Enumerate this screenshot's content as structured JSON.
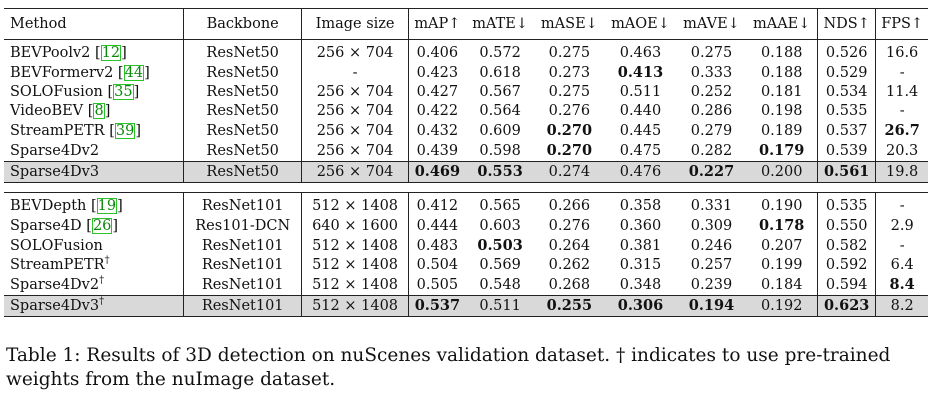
{
  "table": {
    "headers": [
      "Method",
      "Backbone",
      "Image size",
      "mAP↑",
      "mATE↓",
      "mASE↓",
      "mAOE↓",
      "mAVE↓",
      "mAAE↓",
      "NDS↑",
      "FPS↑"
    ],
    "groups": [
      {
        "rows": [
          {
            "method": "BEVPoolv2",
            "ref": "12",
            "dagger": false,
            "backbone": "ResNet50",
            "size": "256 × 704",
            "vals": [
              "0.406",
              "0.572",
              "0.275",
              "0.463",
              "0.275",
              "0.188",
              "0.526",
              "16.6"
            ],
            "bold": []
          },
          {
            "method": "BEVFormerv2",
            "ref": "44",
            "dagger": false,
            "backbone": "ResNet50",
            "size": "-",
            "vals": [
              "0.423",
              "0.618",
              "0.273",
              "0.413",
              "0.333",
              "0.188",
              "0.529",
              "-"
            ],
            "bold": [
              3
            ]
          },
          {
            "method": "SOLOFusion",
            "ref": "35",
            "dagger": false,
            "backbone": "ResNet50",
            "size": "256 × 704",
            "vals": [
              "0.427",
              "0.567",
              "0.275",
              "0.511",
              "0.252",
              "0.181",
              "0.534",
              "11.4"
            ],
            "bold": []
          },
          {
            "method": "VideoBEV",
            "ref": "8",
            "dagger": false,
            "backbone": "ResNet50",
            "size": "256 × 704",
            "vals": [
              "0.422",
              "0.564",
              "0.276",
              "0.440",
              "0.286",
              "0.198",
              "0.535",
              "-"
            ],
            "bold": []
          },
          {
            "method": "StreamPETR",
            "ref": "39",
            "dagger": false,
            "backbone": "ResNet50",
            "size": "256 × 704",
            "vals": [
              "0.432",
              "0.609",
              "0.270",
              "0.445",
              "0.279",
              "0.189",
              "0.537",
              "26.7"
            ],
            "bold": [
              2,
              7
            ]
          },
          {
            "method": "Sparse4Dv2",
            "ref": "",
            "dagger": false,
            "backbone": "ResNet50",
            "size": "256 × 704",
            "vals": [
              "0.439",
              "0.598",
              "0.270",
              "0.475",
              "0.282",
              "0.179",
              "0.539",
              "20.3"
            ],
            "bold": [
              2,
              5
            ]
          }
        ],
        "ours": {
          "method": "Sparse4Dv3",
          "dagger": false,
          "backbone": "ResNet50",
          "size": "256 × 704",
          "vals": [
            "0.469",
            "0.553",
            "0.274",
            "0.476",
            "0.227",
            "0.200",
            "0.561",
            "19.8"
          ],
          "bold": [
            0,
            1,
            4,
            6
          ]
        }
      },
      {
        "rows": [
          {
            "method": "BEVDepth",
            "ref": "19",
            "dagger": false,
            "backbone": "ResNet101",
            "size": "512 × 1408",
            "vals": [
              "0.412",
              "0.565",
              "0.266",
              "0.358",
              "0.331",
              "0.190",
              "0.535",
              "-"
            ],
            "bold": []
          },
          {
            "method": "Sparse4D",
            "ref": "26",
            "dagger": false,
            "backbone": "Res101-DCN",
            "size": "640 × 1600",
            "vals": [
              "0.444",
              "0.603",
              "0.276",
              "0.360",
              "0.309",
              "0.178",
              "0.550",
              "2.9"
            ],
            "bold": [
              5
            ]
          },
          {
            "method": "SOLOFusion",
            "ref": "",
            "dagger": false,
            "backbone": "ResNet101",
            "size": "512 × 1408",
            "vals": [
              "0.483",
              "0.503",
              "0.264",
              "0.381",
              "0.246",
              "0.207",
              "0.582",
              "-"
            ],
            "bold": [
              1
            ]
          },
          {
            "method": "StreamPETR",
            "ref": "",
            "dagger": true,
            "backbone": "ResNet101",
            "size": "512 × 1408",
            "vals": [
              "0.504",
              "0.569",
              "0.262",
              "0.315",
              "0.257",
              "0.199",
              "0.592",
              "6.4"
            ],
            "bold": []
          },
          {
            "method": "Sparse4Dv2",
            "ref": "",
            "dagger": true,
            "backbone": "ResNet101",
            "size": "512 × 1408",
            "vals": [
              "0.505",
              "0.548",
              "0.268",
              "0.348",
              "0.239",
              "0.184",
              "0.594",
              "8.4"
            ],
            "bold": [
              7
            ]
          }
        ],
        "ours": {
          "method": "Sparse4Dv3",
          "dagger": true,
          "backbone": "ResNet101",
          "size": "512 × 1408",
          "vals": [
            "0.537",
            "0.511",
            "0.255",
            "0.306",
            "0.194",
            "0.192",
            "0.623",
            "8.2"
          ],
          "bold": [
            0,
            2,
            3,
            4,
            6
          ]
        }
      }
    ]
  },
  "caption": "Table 1: Results of 3D detection on nuScenes validation dataset. † indicates to use pre-trained weights from the nuImage dataset.",
  "colors": {
    "highlight_row": "#d9d9d9",
    "citation_green": "#0a8a0a"
  }
}
